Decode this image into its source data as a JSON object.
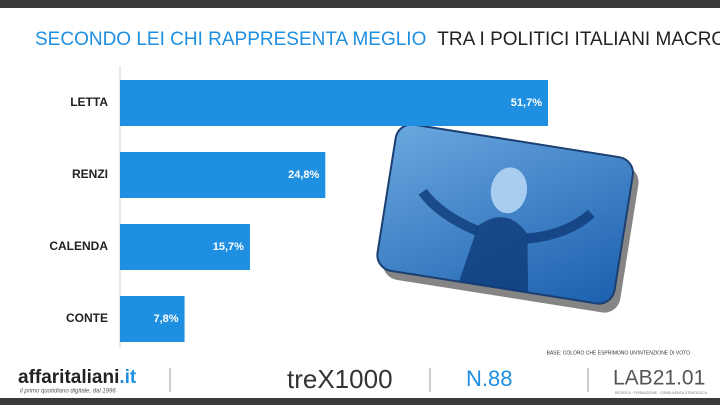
{
  "chart_data": {
    "type": "hbar",
    "title": "SECONDO LEI CHI RAPPRESENTA MEGLIO",
    "title_rest": "TRA I POLITICI ITALIANI MACRON?",
    "categories": [
      "LETTA",
      "RENZI",
      "CALENDA",
      "CONTE"
    ],
    "values": [
      51.7,
      24.8,
      15.7,
      7.8
    ],
    "value_labels": [
      "51,7%",
      "24,8%",
      "15,7%",
      "7,8%"
    ],
    "color": "#1e8fe1",
    "note": "BASE: COLORO CHE ESPRIMONO UN'INTENZIONE DI VOTO"
  },
  "footer": {
    "brand": "affaritaliani",
    "brand_suffix": ".it",
    "tagline": "il primo quotidiano digitale, dal 1996",
    "logo": "treX1000",
    "issue": "N.88",
    "lab": "LAB21.01",
    "lab_tagline": "RICERCA · FORMAZIONE · CONSULENZA STRATEGICA"
  }
}
